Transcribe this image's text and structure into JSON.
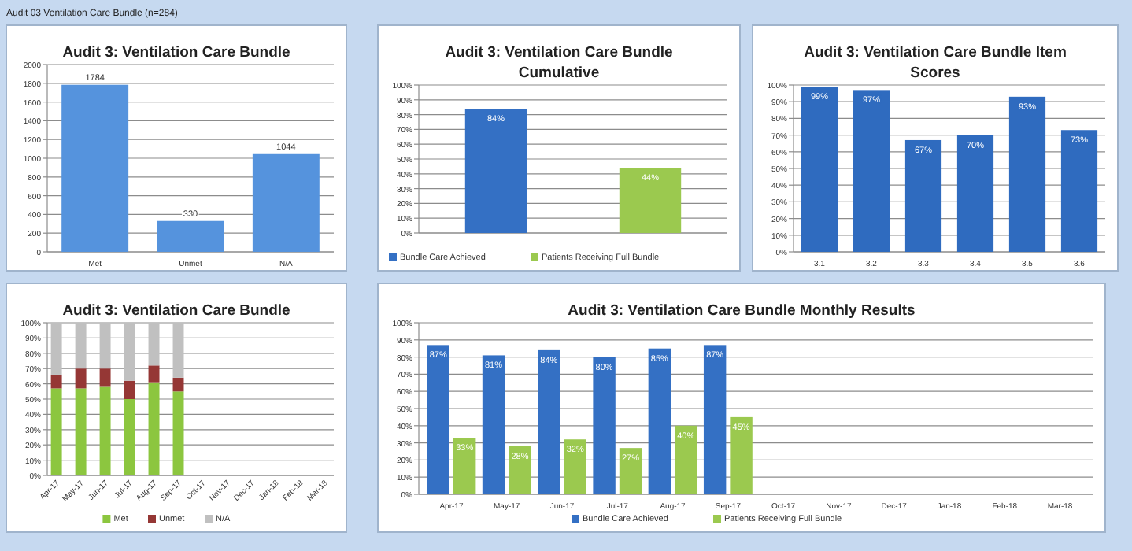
{
  "chart_data": [
    {
      "type": "bar",
      "title": "Audit 3: Ventilation Care Bundle",
      "annotations": [
        "Audit 03 Ventilation Care Bundle (n=284)"
      ],
      "categories": [
        "Met",
        "Unmet",
        "N/A"
      ],
      "values": [
        1784,
        330,
        1044
      ],
      "color": "#5593dd",
      "data_labels": true,
      "ylim": [
        0,
        2000
      ],
      "yticks": [
        0,
        200,
        400,
        600,
        800,
        1000,
        1200,
        1400,
        1600,
        1800,
        2000
      ],
      "grid": "y"
    },
    {
      "type": "bar",
      "title": "Audit 3: Ventilation Care Bundle Cumulative",
      "categories": [
        null
      ],
      "series": [
        {
          "name": "Bundle Care Achieved",
          "color": "#3470c4",
          "values": [
            84
          ],
          "value_labels": [
            "84%"
          ]
        },
        {
          "name": "Patients Receiving Full Bundle",
          "color": "#9bc94f",
          "values": [
            44
          ],
          "value_labels": [
            "44%"
          ]
        }
      ],
      "ylim": [
        0,
        100
      ],
      "yticks": [
        {
          "value": 0,
          "label": "0%"
        },
        {
          "value": 10,
          "label": "10%"
        },
        {
          "value": 20,
          "label": "20%"
        },
        {
          "value": 30,
          "label": "30%"
        },
        {
          "value": 40,
          "label": "40%"
        },
        {
          "value": 50,
          "label": "50%"
        },
        {
          "value": 60,
          "label": "60%"
        },
        {
          "value": 70,
          "label": "70%"
        },
        {
          "value": 80,
          "label": "80%"
        },
        {
          "value": 90,
          "label": "90%"
        },
        {
          "value": 100,
          "label": "100%"
        }
      ],
      "grid": "y",
      "legend": "bottom"
    },
    {
      "type": "bar",
      "title": "Audit 3: Ventilation Care Bundle Item Scores",
      "categories": [
        "3.1",
        "3.2",
        "3.3",
        "3.4",
        "3.5",
        "3.6"
      ],
      "values": [
        99,
        97,
        67,
        70,
        93,
        73
      ],
      "value_labels": [
        "99%",
        "97%",
        "67%",
        "70%",
        "93%",
        "73%"
      ],
      "color": "#2f6bbf",
      "ylim": [
        0,
        100
      ],
      "yticks": [
        {
          "value": 0,
          "label": "0%"
        },
        {
          "value": 10,
          "label": "10%"
        },
        {
          "value": 20,
          "label": "20%"
        },
        {
          "value": 30,
          "label": "30%"
        },
        {
          "value": 40,
          "label": "40%"
        },
        {
          "value": 50,
          "label": "50%"
        },
        {
          "value": 60,
          "label": "60%"
        },
        {
          "value": 70,
          "label": "70%"
        },
        {
          "value": 80,
          "label": "80%"
        },
        {
          "value": 90,
          "label": "90%"
        },
        {
          "value": 100,
          "label": "100%"
        }
      ],
      "grid": "y"
    },
    {
      "type": "bar",
      "title": "Audit 3: Ventilation Care Bundle",
      "stacked": true,
      "categories": [
        "Apr-17",
        "May-17",
        "Jun-17",
        "Jul-17",
        "Aug-17",
        "Sep-17",
        "Oct-17",
        "Nov-17",
        "Dec-17",
        "Jan-18",
        "Feb-18",
        "Mar-18"
      ],
      "series": [
        {
          "name": "Met",
          "color": "#8cc63f",
          "values": [
            57,
            57,
            58,
            50,
            61,
            55,
            null,
            null,
            null,
            null,
            null,
            null
          ]
        },
        {
          "name": "Unmet",
          "color": "#953735",
          "values": [
            9,
            13,
            12,
            12,
            11,
            9,
            null,
            null,
            null,
            null,
            null,
            null
          ]
        },
        {
          "name": "N/A",
          "color": "#c0c0c0",
          "values": [
            34,
            30,
            30,
            38,
            28,
            36,
            null,
            null,
            null,
            null,
            null,
            null
          ]
        }
      ],
      "ylim": [
        0,
        100
      ],
      "yticks": [
        {
          "value": 0,
          "label": "0%"
        },
        {
          "value": 10,
          "label": "10%"
        },
        {
          "value": 20,
          "label": "20%"
        },
        {
          "value": 30,
          "label": "30%"
        },
        {
          "value": 40,
          "label": "40%"
        },
        {
          "value": 50,
          "label": "50%"
        },
        {
          "value": 60,
          "label": "60%"
        },
        {
          "value": 70,
          "label": "70%"
        },
        {
          "value": 80,
          "label": "80%"
        },
        {
          "value": 90,
          "label": "90%"
        },
        {
          "value": 100,
          "label": "100%"
        }
      ],
      "grid": "y",
      "legend": "bottom"
    },
    {
      "type": "bar",
      "title": "Audit 3: Ventilation Care Bundle Monthly Results",
      "categories": [
        "Apr-17",
        "May-17",
        "Jun-17",
        "Jul-17",
        "Aug-17",
        "Sep-17",
        "Oct-17",
        "Nov-17",
        "Dec-17",
        "Jan-18",
        "Feb-18",
        "Mar-18"
      ],
      "series": [
        {
          "name": "Bundle Care Achieved",
          "color": "#3470c4",
          "values": [
            87,
            81,
            84,
            80,
            85,
            87,
            null,
            null,
            null,
            null,
            null,
            null
          ],
          "value_labels": [
            "87%",
            "81%",
            "84%",
            "80%",
            "85%",
            "87%",
            null,
            null,
            null,
            null,
            null,
            null
          ]
        },
        {
          "name": "Patients Receiving Full Bundle",
          "color": "#9bc94f",
          "values": [
            33,
            28,
            32,
            27,
            40,
            45,
            null,
            null,
            null,
            null,
            null,
            null
          ],
          "value_labels": [
            "33%",
            "28%",
            "32%",
            "27%",
            "40%",
            "45%",
            null,
            null,
            null,
            null,
            null,
            null
          ]
        }
      ],
      "ylim": [
        0,
        100
      ],
      "yticks": [
        {
          "value": 0,
          "label": "0%"
        },
        {
          "value": 10,
          "label": "10%"
        },
        {
          "value": 20,
          "label": "20%"
        },
        {
          "value": 30,
          "label": "30%"
        },
        {
          "value": 40,
          "label": "40%"
        },
        {
          "value": 50,
          "label": "50%"
        },
        {
          "value": 60,
          "label": "60%"
        },
        {
          "value": 70,
          "label": "70%"
        },
        {
          "value": 80,
          "label": "80%"
        },
        {
          "value": 90,
          "label": "90%"
        },
        {
          "value": 100,
          "label": "100%"
        }
      ],
      "grid": "y",
      "legend": "bottom"
    }
  ]
}
